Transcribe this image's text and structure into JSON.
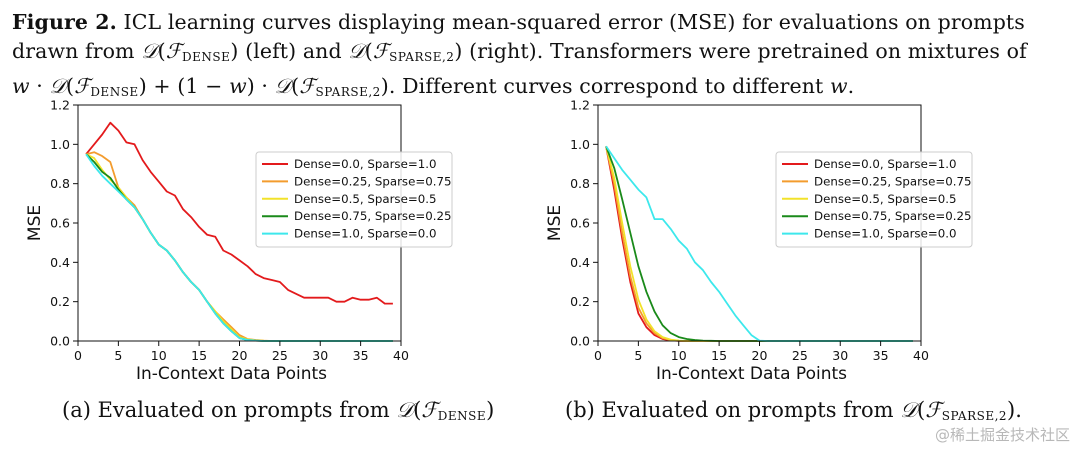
{
  "caption": {
    "label": "Figure 2.",
    "line1_text": "ICL learning curves displaying mean-squared error (MSE) for evaluations on prompts",
    "line2_a": "drawn from ",
    "calD": "𝒟",
    "calF": "ℱ",
    "dense_sub": "DENSE",
    "line2_b": " (left) and ",
    "sparse_sub": "SPARSE,2",
    "line2_c": " (right). Transformers were pretrained on mixtures of",
    "line3_w": "w",
    "line3_dot": " · ",
    "line3_plus": " + (1 − ",
    "line3_close": ") · ",
    "line3_end": ". Different curves correspond to different ",
    "line3_period": "."
  },
  "subcaptions": {
    "a_text": "(a) Evaluated on prompts from ",
    "b_text": "(b) Evaluated on prompts from ",
    "b_period": "."
  },
  "watermark": "@稀土掘金技术社区",
  "colors": {
    "dense0": "#e31a1c",
    "dense025": "#f39c2e",
    "dense05": "#f2e22a",
    "dense075": "#1a8a1a",
    "dense1": "#3de8ec"
  },
  "chart_data": [
    {
      "type": "line",
      "panel": "left",
      "xlabel": "In-Context Data Points",
      "ylabel": "MSE",
      "xlim": [
        0,
        40
      ],
      "ylim": [
        0.0,
        1.2
      ],
      "xticks": [
        0,
        5,
        10,
        15,
        20,
        25,
        30,
        35,
        40
      ],
      "yticks": [
        0.0,
        0.2,
        0.4,
        0.6,
        0.8,
        1.0,
        1.2
      ],
      "legend": "upper-right",
      "series": [
        {
          "name": "Dense=0.0, Sparse=1.0",
          "color": "#e31a1c",
          "x": [
            1,
            2,
            3,
            4,
            5,
            6,
            7,
            8,
            9,
            10,
            11,
            12,
            13,
            14,
            15,
            16,
            17,
            18,
            19,
            20,
            21,
            22,
            23,
            24,
            25,
            26,
            27,
            28,
            29,
            30,
            31,
            32,
            33,
            34,
            35,
            36,
            37,
            38,
            39
          ],
          "values": [
            0.95,
            1.0,
            1.05,
            1.11,
            1.07,
            1.01,
            1.0,
            0.92,
            0.86,
            0.81,
            0.76,
            0.74,
            0.67,
            0.63,
            0.58,
            0.54,
            0.53,
            0.46,
            0.44,
            0.41,
            0.38,
            0.34,
            0.32,
            0.31,
            0.3,
            0.26,
            0.24,
            0.22,
            0.22,
            0.22,
            0.22,
            0.2,
            0.2,
            0.22,
            0.21,
            0.21,
            0.22,
            0.19,
            0.19
          ]
        },
        {
          "name": "Dense=0.25, Sparse=0.75",
          "color": "#f39c2e",
          "x": [
            1,
            2,
            3,
            4,
            5,
            6,
            7,
            8,
            9,
            10,
            11,
            12,
            13,
            14,
            15,
            16,
            17,
            18,
            19,
            20,
            21,
            22,
            23,
            24,
            25,
            26,
            27,
            28,
            29,
            30,
            31,
            32,
            33,
            34,
            35,
            36,
            37,
            38,
            39
          ],
          "values": [
            0.95,
            0.96,
            0.94,
            0.91,
            0.78,
            0.73,
            0.69,
            0.62,
            0.55,
            0.49,
            0.46,
            0.41,
            0.35,
            0.3,
            0.26,
            0.2,
            0.15,
            0.11,
            0.07,
            0.03,
            0.01,
            0.005,
            0.002,
            0,
            0,
            0,
            0,
            0,
            0,
            0,
            0,
            0,
            0,
            0,
            0,
            0,
            0,
            0,
            0
          ]
        },
        {
          "name": "Dense=0.5, Sparse=0.5",
          "color": "#f2e22a",
          "x": [
            1,
            2,
            3,
            4,
            5,
            6,
            7,
            8,
            9,
            10,
            11,
            12,
            13,
            14,
            15,
            16,
            17,
            18,
            19,
            20,
            21,
            22,
            23,
            24,
            25,
            26,
            27,
            28,
            29,
            30,
            31,
            32,
            33,
            34,
            35,
            36,
            37,
            38,
            39
          ],
          "values": [
            0.95,
            0.93,
            0.87,
            0.82,
            0.78,
            0.73,
            0.68,
            0.62,
            0.55,
            0.49,
            0.46,
            0.41,
            0.35,
            0.3,
            0.26,
            0.2,
            0.15,
            0.1,
            0.06,
            0.02,
            0.008,
            0.003,
            0.001,
            0,
            0,
            0,
            0,
            0,
            0,
            0,
            0,
            0,
            0,
            0,
            0,
            0,
            0,
            0,
            0
          ]
        },
        {
          "name": "Dense=0.75, Sparse=0.25",
          "color": "#1a8a1a",
          "x": [
            1,
            2,
            3,
            4,
            5,
            6,
            7,
            8,
            9,
            10,
            11,
            12,
            13,
            14,
            15,
            16,
            17,
            18,
            19,
            20,
            21,
            22,
            23,
            24,
            25,
            26,
            27,
            28,
            29,
            30,
            31,
            32,
            33,
            34,
            35,
            36,
            37,
            38,
            39
          ],
          "values": [
            0.95,
            0.91,
            0.86,
            0.83,
            0.77,
            0.72,
            0.68,
            0.62,
            0.55,
            0.49,
            0.46,
            0.41,
            0.35,
            0.3,
            0.26,
            0.2,
            0.14,
            0.09,
            0.05,
            0.015,
            0.005,
            0.002,
            0,
            0,
            0,
            0,
            0,
            0,
            0,
            0,
            0,
            0,
            0,
            0,
            0,
            0,
            0,
            0,
            0
          ]
        },
        {
          "name": "Dense=1.0, Sparse=0.0",
          "color": "#3de8ec",
          "x": [
            1,
            2,
            3,
            4,
            5,
            6,
            7,
            8,
            9,
            10,
            11,
            12,
            13,
            14,
            15,
            16,
            17,
            18,
            19,
            20,
            21,
            22,
            23,
            24,
            25,
            26,
            27,
            28,
            29,
            30,
            31,
            32,
            33,
            34,
            35,
            36,
            37,
            38,
            39
          ],
          "values": [
            0.95,
            0.89,
            0.84,
            0.8,
            0.76,
            0.72,
            0.68,
            0.62,
            0.55,
            0.49,
            0.46,
            0.41,
            0.35,
            0.3,
            0.26,
            0.2,
            0.14,
            0.09,
            0.05,
            0.015,
            0.005,
            0.002,
            0,
            0,
            0,
            0,
            0,
            0,
            0,
            0,
            0,
            0,
            0,
            0,
            0,
            0,
            0,
            0,
            0
          ]
        }
      ]
    },
    {
      "type": "line",
      "panel": "right",
      "xlabel": "In-Context Data Points",
      "ylabel": "MSE",
      "xlim": [
        0,
        40
      ],
      "ylim": [
        0.0,
        1.2
      ],
      "xticks": [
        0,
        5,
        10,
        15,
        20,
        25,
        30,
        35,
        40
      ],
      "yticks": [
        0.0,
        0.2,
        0.4,
        0.6,
        0.8,
        1.0,
        1.2
      ],
      "legend": "upper-right",
      "series": [
        {
          "name": "Dense=0.0, Sparse=1.0",
          "color": "#e31a1c",
          "x": [
            1,
            2,
            3,
            4,
            5,
            6,
            7,
            8,
            9,
            10,
            11,
            12,
            13,
            14,
            15,
            16,
            17,
            18,
            19,
            20,
            21,
            22,
            23,
            24,
            25,
            26,
            27,
            28,
            29,
            30,
            31,
            32,
            33,
            34,
            35,
            36,
            37,
            38,
            39
          ],
          "values": [
            0.99,
            0.77,
            0.52,
            0.3,
            0.14,
            0.07,
            0.03,
            0.01,
            0.003,
            0.001,
            0,
            0,
            0,
            0,
            0,
            0,
            0,
            0,
            0,
            0,
            0,
            0,
            0,
            0,
            0,
            0,
            0,
            0,
            0,
            0,
            0,
            0,
            0,
            0,
            0,
            0,
            0,
            0,
            0
          ]
        },
        {
          "name": "Dense=0.25, Sparse=0.75",
          "color": "#f39c2e",
          "x": [
            1,
            2,
            3,
            4,
            5,
            6,
            7,
            8,
            9,
            10,
            11,
            12,
            13,
            14,
            15,
            16,
            17,
            18,
            19,
            20,
            21,
            22,
            23,
            24,
            25,
            26,
            27,
            28,
            29,
            30,
            31,
            32,
            33,
            34,
            35,
            36,
            37,
            38,
            39
          ],
          "values": [
            0.99,
            0.8,
            0.55,
            0.33,
            0.17,
            0.09,
            0.04,
            0.015,
            0.005,
            0.001,
            0,
            0,
            0,
            0,
            0,
            0,
            0,
            0,
            0,
            0,
            0,
            0,
            0,
            0,
            0,
            0,
            0,
            0,
            0,
            0,
            0,
            0,
            0,
            0,
            0,
            0,
            0,
            0,
            0
          ]
        },
        {
          "name": "Dense=0.5, Sparse=0.5",
          "color": "#f2e22a",
          "x": [
            1,
            2,
            3,
            4,
            5,
            6,
            7,
            8,
            9,
            10,
            11,
            12,
            13,
            14,
            15,
            16,
            17,
            18,
            19,
            20,
            21,
            22,
            23,
            24,
            25,
            26,
            27,
            28,
            29,
            30,
            31,
            32,
            33,
            34,
            35,
            36,
            37,
            38,
            39
          ],
          "values": [
            0.99,
            0.83,
            0.6,
            0.38,
            0.21,
            0.11,
            0.05,
            0.02,
            0.007,
            0.002,
            0,
            0,
            0,
            0,
            0,
            0,
            0,
            0,
            0,
            0,
            0,
            0,
            0,
            0,
            0,
            0,
            0,
            0,
            0,
            0,
            0,
            0,
            0,
            0,
            0,
            0,
            0,
            0,
            0
          ]
        },
        {
          "name": "Dense=0.75, Sparse=0.25",
          "color": "#1a8a1a",
          "x": [
            1,
            2,
            3,
            4,
            5,
            6,
            7,
            8,
            9,
            10,
            11,
            12,
            13,
            14,
            15,
            16,
            17,
            18,
            19,
            20,
            21,
            22,
            23,
            24,
            25,
            26,
            27,
            28,
            29,
            30,
            31,
            32,
            33,
            34,
            35,
            36,
            37,
            38,
            39
          ],
          "values": [
            0.99,
            0.88,
            0.72,
            0.55,
            0.38,
            0.25,
            0.15,
            0.08,
            0.04,
            0.02,
            0.01,
            0.005,
            0.002,
            0.001,
            0,
            0,
            0,
            0,
            0,
            0,
            0,
            0,
            0,
            0,
            0,
            0,
            0,
            0,
            0,
            0,
            0,
            0,
            0,
            0,
            0,
            0,
            0,
            0,
            0
          ]
        },
        {
          "name": "Dense=1.0, Sparse=0.0",
          "color": "#3de8ec",
          "x": [
            1,
            2,
            3,
            4,
            5,
            6,
            7,
            8,
            9,
            10,
            11,
            12,
            13,
            14,
            15,
            16,
            17,
            18,
            19,
            20,
            21,
            22,
            23,
            24,
            25,
            26,
            27,
            28,
            29,
            30,
            31,
            32,
            33,
            34,
            35,
            36,
            37,
            38,
            39
          ],
          "values": [
            0.99,
            0.93,
            0.87,
            0.82,
            0.77,
            0.73,
            0.62,
            0.62,
            0.57,
            0.51,
            0.47,
            0.4,
            0.36,
            0.3,
            0.25,
            0.19,
            0.13,
            0.08,
            0.03,
            0.002,
            0,
            0,
            0,
            0,
            0,
            0,
            0,
            0,
            0,
            0,
            0,
            0,
            0,
            0,
            0,
            0,
            0,
            0,
            0
          ]
        }
      ]
    }
  ]
}
